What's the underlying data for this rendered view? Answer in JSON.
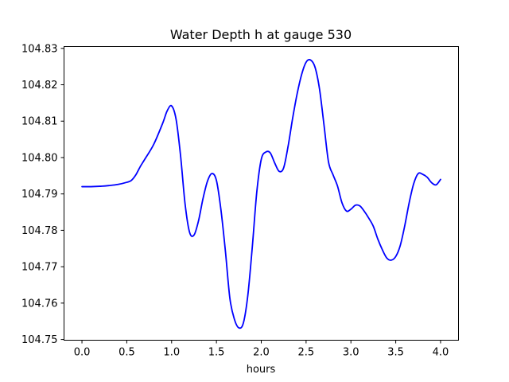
{
  "chart_data": {
    "type": "line",
    "title": "Water Depth h at gauge 530",
    "xlabel": "hours",
    "ylabel": "",
    "xlim": [
      -0.2,
      4.2
    ],
    "ylim": [
      104.7498,
      104.8305
    ],
    "xticks": [
      0.0,
      0.5,
      1.0,
      1.5,
      2.0,
      2.5,
      3.0,
      3.5,
      4.0
    ],
    "xtick_labels": [
      "0.0",
      "0.5",
      "1.0",
      "1.5",
      "2.0",
      "2.5",
      "3.0",
      "3.5",
      "4.0"
    ],
    "yticks": [
      104.75,
      104.76,
      104.77,
      104.78,
      104.79,
      104.8,
      104.81,
      104.82,
      104.83
    ],
    "ytick_labels": [
      "104.75",
      "104.76",
      "104.77",
      "104.78",
      "104.79",
      "104.80",
      "104.81",
      "104.82",
      "104.83"
    ],
    "grid": false,
    "series": [
      {
        "color": "#0000ff",
        "x": [
          0.0,
          0.1,
          0.2,
          0.3,
          0.4,
          0.5,
          0.55,
          0.6,
          0.65,
          0.7,
          0.8,
          0.9,
          0.95,
          1.0,
          1.05,
          1.1,
          1.15,
          1.2,
          1.25,
          1.3,
          1.35,
          1.4,
          1.45,
          1.5,
          1.55,
          1.6,
          1.65,
          1.7,
          1.75,
          1.8,
          1.85,
          1.9,
          1.95,
          2.0,
          2.05,
          2.1,
          2.15,
          2.2,
          2.25,
          2.3,
          2.35,
          2.4,
          2.45,
          2.5,
          2.55,
          2.6,
          2.65,
          2.7,
          2.75,
          2.8,
          2.85,
          2.9,
          2.95,
          3.0,
          3.05,
          3.1,
          3.15,
          3.2,
          3.25,
          3.3,
          3.35,
          3.4,
          3.45,
          3.5,
          3.55,
          3.6,
          3.65,
          3.7,
          3.75,
          3.8,
          3.85,
          3.9,
          3.95,
          4.0
        ],
        "y": [
          104.792,
          104.792,
          104.7921,
          104.7923,
          104.7926,
          104.7932,
          104.7937,
          104.7952,
          104.7975,
          104.7995,
          104.8036,
          104.8094,
          104.8128,
          104.8142,
          104.8105,
          104.8005,
          104.7873,
          104.7795,
          104.7787,
          104.7826,
          104.7887,
          104.7935,
          104.7956,
          104.7937,
          104.7857,
          104.7743,
          104.7613,
          104.7556,
          104.7532,
          104.7545,
          104.7621,
          104.7754,
          104.7905,
          104.7995,
          104.8015,
          104.8013,
          104.7985,
          104.7962,
          104.7972,
          104.8032,
          104.8108,
          104.8175,
          104.8228,
          104.8262,
          104.8268,
          104.8248,
          104.8188,
          104.8089,
          104.7988,
          104.7953,
          104.7922,
          104.7876,
          104.7853,
          104.7858,
          104.7869,
          104.7867,
          104.7852,
          104.7833,
          104.7811,
          104.7776,
          104.7747,
          104.7724,
          104.7718,
          104.7728,
          104.7758,
          104.7812,
          104.7876,
          104.7928,
          104.7956,
          104.7954,
          104.7946,
          104.7931,
          104.7925,
          104.794
        ]
      }
    ]
  }
}
